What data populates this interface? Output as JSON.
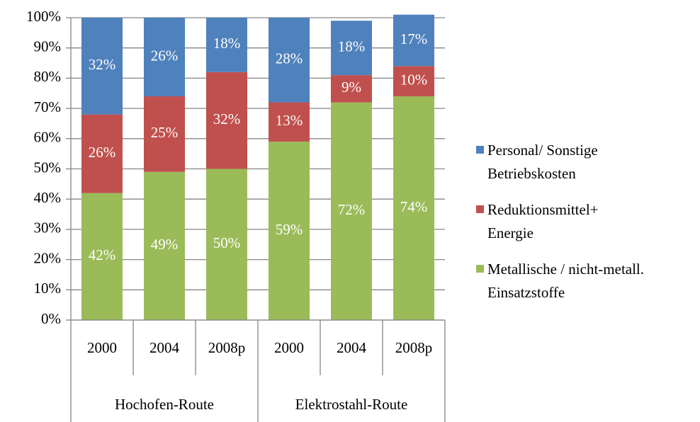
{
  "chart_data": {
    "type": "stacked-bar",
    "category_groups": [
      {
        "name": "Hochofen-Route",
        "categories": [
          "2000",
          "2004",
          "2008p"
        ]
      },
      {
        "name": "Elektrostahl-Route",
        "categories": [
          "2000",
          "2004",
          "2008p"
        ]
      }
    ],
    "series": [
      {
        "name": "Metallische / nicht-metall. Einsatzstoffe",
        "color": "#9bbb59",
        "values": [
          42,
          49,
          50,
          59,
          72,
          74
        ],
        "value_labels": [
          "42%",
          "49%",
          "50%",
          "59%",
          "72%",
          "74%"
        ]
      },
      {
        "name": "Reduktionsmittel+ Energie",
        "color": "#c0504d",
        "values": [
          26,
          25,
          32,
          13,
          9,
          10
        ],
        "value_labels": [
          "26%",
          "25%",
          "32%",
          "13%",
          "9%",
          "10%"
        ]
      },
      {
        "name": "Personal/ Sonstige Betriebskosten",
        "color": "#4f81bd",
        "values": [
          32,
          26,
          18,
          28,
          18,
          17
        ],
        "value_labels": [
          "32%",
          "26%",
          "18%",
          "28%",
          "18%",
          "17%"
        ]
      }
    ],
    "ylim": [
      0,
      100
    ],
    "yticks": [
      {
        "value": 0,
        "label": "0%"
      },
      {
        "value": 10,
        "label": "10%"
      },
      {
        "value": 20,
        "label": "20%"
      },
      {
        "value": 30,
        "label": "30%"
      },
      {
        "value": 40,
        "label": "40%"
      },
      {
        "value": 50,
        "label": "50%"
      },
      {
        "value": 60,
        "label": "60%"
      },
      {
        "value": 70,
        "label": "70%"
      },
      {
        "value": 80,
        "label": "80%"
      },
      {
        "value": 90,
        "label": "90%"
      },
      {
        "value": 100,
        "label": "100%"
      }
    ],
    "grid": true
  }
}
